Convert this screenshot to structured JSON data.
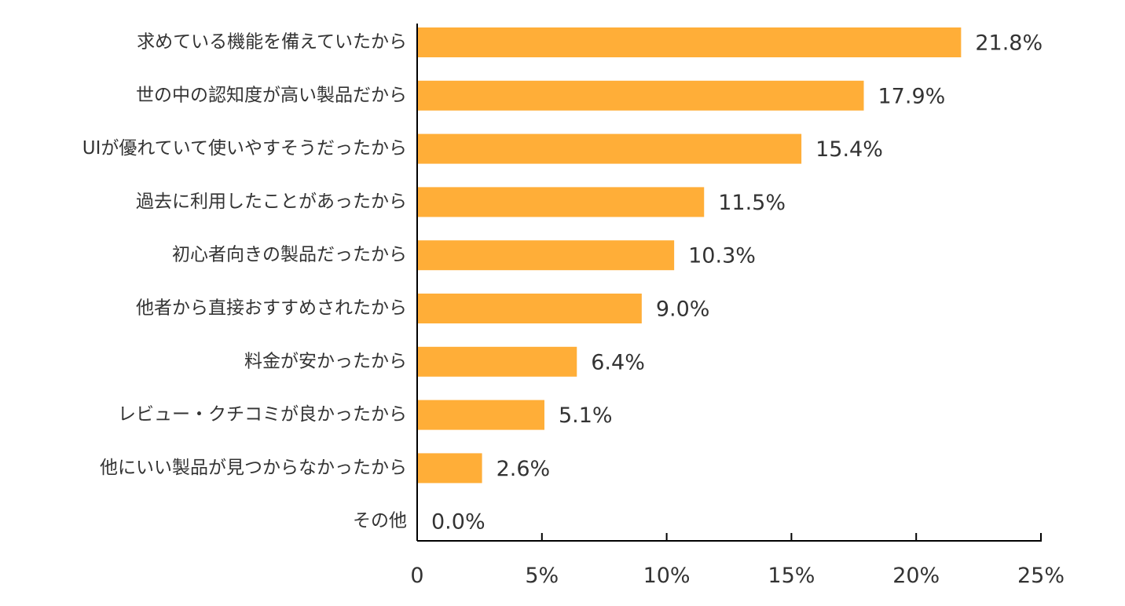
{
  "chart_data": {
    "type": "bar",
    "orientation": "horizontal",
    "title": "",
    "xlabel": "",
    "ylabel": "",
    "categories": [
      "求めている機能を備えていたから",
      "世の中の認知度が高い製品だから",
      "UIが優れていて使いやすそうだったから",
      "過去に利用したことがあったから",
      "初心者向きの製品だったから",
      "他者から直接おすすめされたから",
      "料金が安かったから",
      "レビュー・クチコミが良かったから",
      "他にいい製品が見つからなかったから",
      "その他"
    ],
    "values": [
      21.8,
      17.9,
      15.4,
      11.5,
      10.3,
      9.0,
      6.4,
      5.1,
      2.6,
      0.0
    ],
    "value_labels": [
      "21.8%",
      "17.9%",
      "15.4%",
      "11.5%",
      "10.3%",
      "9.0%",
      "6.4%",
      "5.1%",
      "2.6%",
      "0.0%"
    ],
    "xlim": [
      0,
      25
    ],
    "x_ticks": [
      0,
      5,
      10,
      15,
      20,
      25
    ],
    "x_tick_labels": [
      "0",
      "5%",
      "10%",
      "15%",
      "20%",
      "25%"
    ],
    "grid": false,
    "legend": "none",
    "bar_color": "#FFAE38",
    "axis_color": "#000000",
    "text_color": "#333333"
  }
}
